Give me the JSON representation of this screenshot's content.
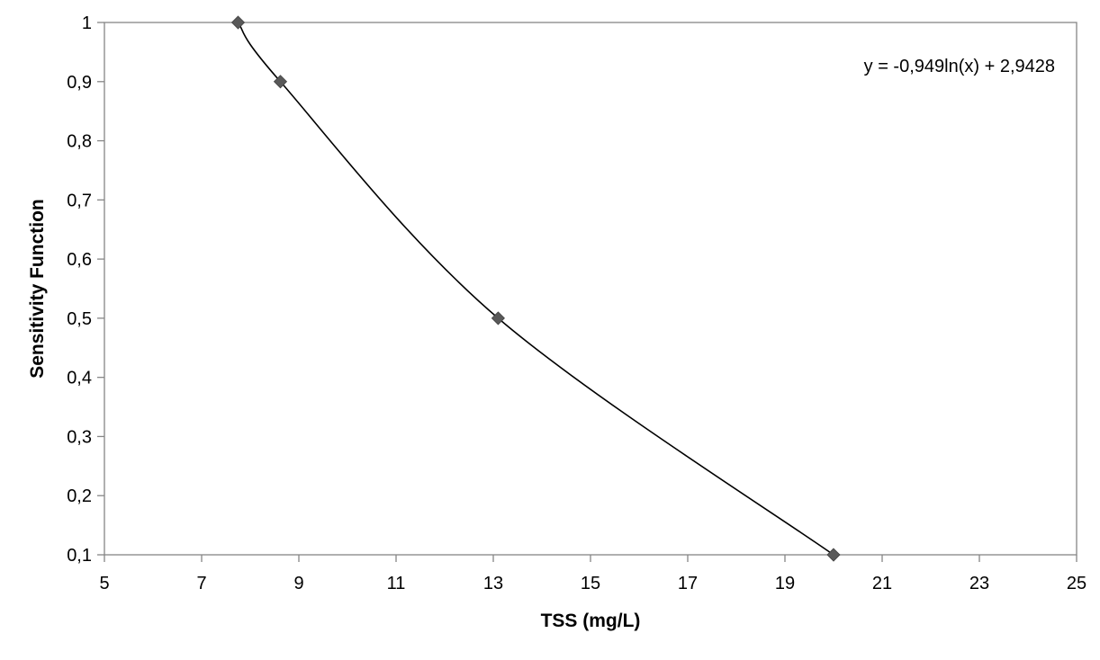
{
  "chart_data": {
    "type": "scatter",
    "title": "",
    "xlabel": "TSS (mg/L)",
    "ylabel": "Sensitivity Function",
    "xlim": [
      5,
      25
    ],
    "ylim": [
      0.1,
      1
    ],
    "x_ticks": [
      5,
      7,
      9,
      11,
      13,
      15,
      17,
      19,
      21,
      23,
      25
    ],
    "y_ticks": [
      0.1,
      0.2,
      0.3,
      0.4,
      0.5,
      0.6,
      0.7,
      0.8,
      0.9,
      1
    ],
    "x_tick_labels": [
      "5",
      "7",
      "9",
      "11",
      "13",
      "15",
      "17",
      "19",
      "21",
      "23",
      "25"
    ],
    "y_tick_labels": [
      "0,1",
      "0,2",
      "0,3",
      "0,4",
      "0,5",
      "0,6",
      "0,7",
      "0,8",
      "0,9",
      "1"
    ],
    "grid": false,
    "legend": "none",
    "series": [
      {
        "marker": "diamond",
        "color": "#595959",
        "points": [
          {
            "x": 7.75,
            "y": 1.0
          },
          {
            "x": 8.62,
            "y": 0.9
          },
          {
            "x": 13.1,
            "y": 0.5
          },
          {
            "x": 20.0,
            "y": 0.1
          }
        ]
      }
    ],
    "trendline": {
      "type": "logarithmic",
      "a": -0.949,
      "b": 2.9428,
      "x_range": [
        7.75,
        20.0
      ],
      "color": "#000000",
      "equation_label": "y = -0,949ln(x) + 2,9428"
    }
  }
}
